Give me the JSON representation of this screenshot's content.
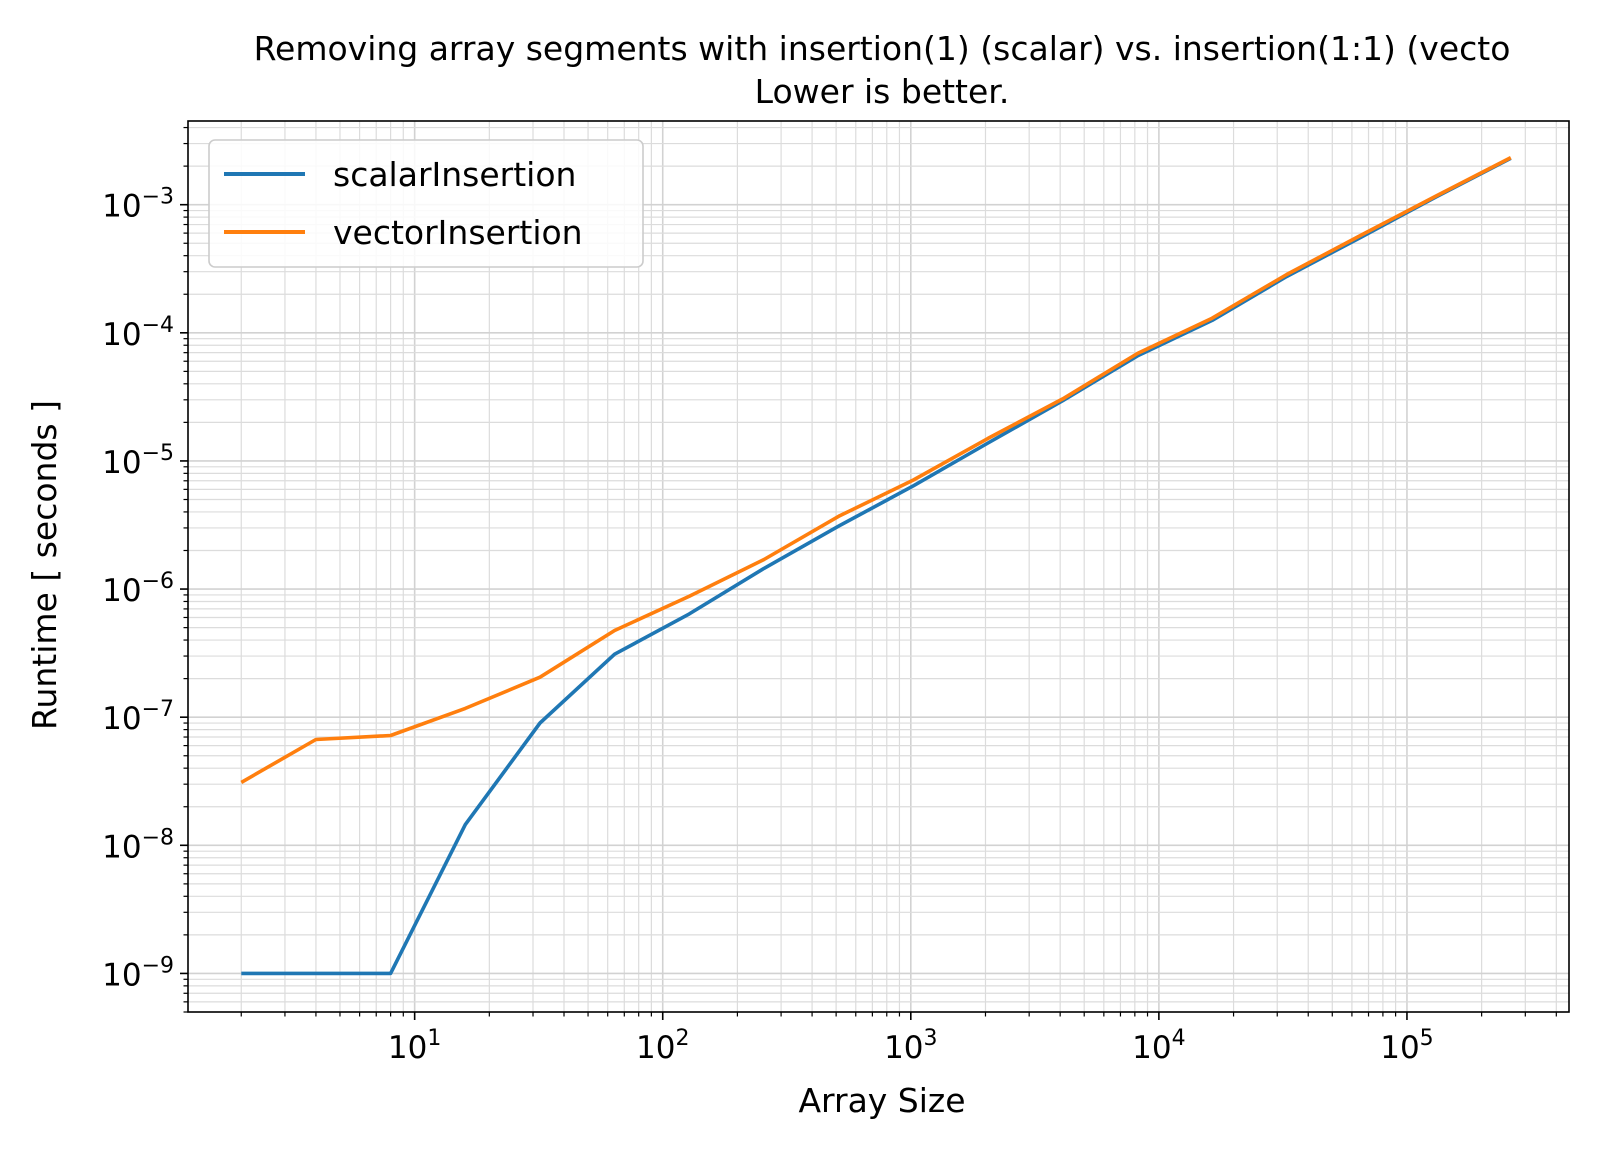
{
  "chart_data": {
    "type": "line",
    "title": "Removing array segments with insertion(1) (scalar) vs. insertion(1:1) (vecto",
    "subtitle": "Lower is better.",
    "xlabel": "Array Size",
    "ylabel": "Runtime [ seconds ]",
    "xscale": "log",
    "yscale": "log",
    "xlim": [
      1.22,
      450000
    ],
    "ylim": [
      5e-10,
      0.0045
    ],
    "grid": true,
    "legend_position": "top-left",
    "x": [
      2,
      4,
      8,
      16,
      32,
      64,
      128,
      256,
      512,
      1024,
      2048,
      4096,
      8192,
      16384,
      32768,
      65536,
      131072,
      262144
    ],
    "series": [
      {
        "name": "scalarInsertion",
        "color": "#1f77b4",
        "values": [
          1e-09,
          1e-09,
          1e-09,
          1.45e-08,
          9e-08,
          3.1e-07,
          6.4e-07,
          1.45e-06,
          3.1e-06,
          6.4e-06,
          1.38e-05,
          2.95e-05,
          6.6e-05,
          0.000125,
          0.000275,
          0.00056,
          0.00115,
          0.0023
        ]
      },
      {
        "name": "vectorInsertion",
        "color": "#ff7f0e",
        "values": [
          3.1e-08,
          6.7e-08,
          7.2e-08,
          1.17e-07,
          2.05e-07,
          4.75e-07,
          8.8e-07,
          1.7e-06,
          3.7e-06,
          7.1e-06,
          1.5e-05,
          3.05e-05,
          6.9e-05,
          0.00013,
          0.000285,
          0.00058,
          0.00117,
          0.00233
        ]
      }
    ],
    "x_ticks": [
      {
        "base": "10",
        "exp": "1",
        "value": 10
      },
      {
        "base": "10",
        "exp": "2",
        "value": 100
      },
      {
        "base": "10",
        "exp": "3",
        "value": 1000
      },
      {
        "base": "10",
        "exp": "4",
        "value": 10000
      },
      {
        "base": "10",
        "exp": "5",
        "value": 100000
      }
    ],
    "y_ticks": [
      {
        "base": "10",
        "exp": "−9",
        "value": 1e-09
      },
      {
        "base": "10",
        "exp": "−8",
        "value": 1e-08
      },
      {
        "base": "10",
        "exp": "−7",
        "value": 1e-07
      },
      {
        "base": "10",
        "exp": "−6",
        "value": 1e-06
      },
      {
        "base": "10",
        "exp": "−5",
        "value": 1e-05
      },
      {
        "base": "10",
        "exp": "−4",
        "value": 0.0001
      },
      {
        "base": "10",
        "exp": "−3",
        "value": 0.001
      }
    ]
  }
}
